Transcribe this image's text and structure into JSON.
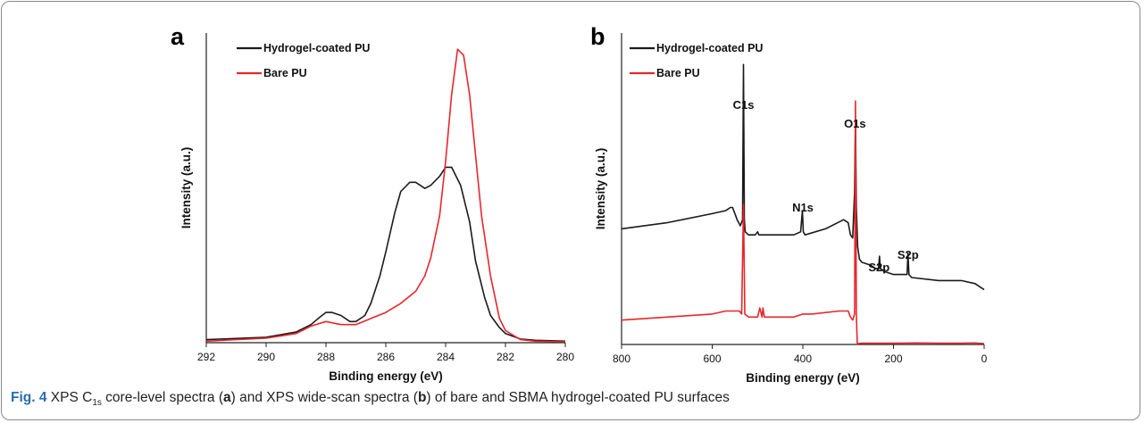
{
  "caption": {
    "lead": "Fig. 4",
    "part1": " XPS C",
    "sub": "1s",
    "part2": " core-level spectra (",
    "ref_a": "a",
    "part3": ") and XPS wide-scan spectra (",
    "ref_b": "b",
    "part4": ") of bare and SBMA hydrogel-coated PU surfaces"
  },
  "chart_data": [
    {
      "panel": "a",
      "type": "line",
      "xlabel": "Binding energy (eV)",
      "ylabel": "Intensity (a.u.)",
      "xlim": [
        292,
        280
      ],
      "x_reversed": true,
      "xticks": [
        292,
        290,
        288,
        286,
        284,
        282,
        280
      ],
      "ylim": [
        0,
        1
      ],
      "yticks_shown": false,
      "legend_position": "top-left",
      "series": [
        {
          "name": "Hydrogel-coated PU",
          "color": "#1a1a1a",
          "x": [
            292,
            290,
            289,
            288.5,
            288.2,
            288,
            287.8,
            287.5,
            287.2,
            287,
            286.7,
            286.5,
            286.2,
            286,
            285.7,
            285.5,
            285.2,
            285,
            284.7,
            284.5,
            284.2,
            284,
            283.8,
            283.5,
            283.2,
            283,
            282.7,
            282.5,
            282.2,
            282,
            281.5,
            281,
            280
          ],
          "values": [
            0.01,
            0.018,
            0.035,
            0.06,
            0.085,
            0.1,
            0.1,
            0.09,
            0.07,
            0.07,
            0.09,
            0.13,
            0.22,
            0.3,
            0.43,
            0.5,
            0.53,
            0.53,
            0.51,
            0.52,
            0.55,
            0.58,
            0.58,
            0.52,
            0.4,
            0.27,
            0.15,
            0.09,
            0.05,
            0.03,
            0.012,
            0.008,
            0.005
          ]
        },
        {
          "name": "Bare PU",
          "color": "#e8262b",
          "x": [
            292,
            290,
            289,
            288.5,
            288,
            287.5,
            287,
            286.5,
            286,
            285.5,
            285,
            284.7,
            284.5,
            284.2,
            284,
            283.8,
            283.6,
            283.4,
            283.2,
            283,
            282.8,
            282.5,
            282.2,
            282,
            281.5,
            281,
            280
          ],
          "values": [
            0.005,
            0.015,
            0.03,
            0.055,
            0.07,
            0.06,
            0.06,
            0.08,
            0.1,
            0.13,
            0.17,
            0.22,
            0.28,
            0.42,
            0.6,
            0.82,
            0.97,
            0.95,
            0.82,
            0.62,
            0.42,
            0.22,
            0.08,
            0.04,
            0.01,
            0.005,
            0.003
          ]
        }
      ]
    },
    {
      "panel": "b",
      "type": "line",
      "xlabel": "Binding energy (eV)",
      "ylabel": "Intensity (a.u.)",
      "xlim": [
        800,
        0
      ],
      "x_reversed": true,
      "xticks": [
        800,
        600,
        400,
        200,
        0
      ],
      "ylim": [
        0,
        1
      ],
      "yticks_shown": false,
      "legend_position": "top-left",
      "annotations": [
        {
          "text": "C1s",
          "x": 531
        },
        {
          "text": "N1s",
          "x": 400
        },
        {
          "text": "O1s",
          "x": 285
        },
        {
          "text": "S2p",
          "x": 232
        },
        {
          "text": "S2p",
          "x": 168
        }
      ],
      "series": [
        {
          "name": "Hydrogel-coated PU",
          "color": "#1a1a1a",
          "x": [
            800,
            700,
            600,
            570,
            560,
            555,
            550,
            545,
            538,
            533,
            531,
            529,
            527,
            520,
            505,
            500,
            497,
            480,
            450,
            420,
            405,
            401,
            399,
            395,
            350,
            310,
            300,
            295,
            290,
            286,
            284,
            282,
            279,
            275,
            270,
            250,
            240,
            233,
            231,
            229,
            220,
            200,
            170,
            168,
            166,
            160,
            100,
            50,
            20,
            0
          ],
          "values": [
            0.38,
            0.4,
            0.43,
            0.44,
            0.45,
            0.45,
            0.43,
            0.41,
            0.39,
            0.41,
            0.92,
            0.41,
            0.37,
            0.36,
            0.36,
            0.37,
            0.36,
            0.36,
            0.36,
            0.36,
            0.37,
            0.44,
            0.37,
            0.36,
            0.38,
            0.41,
            0.4,
            0.36,
            0.35,
            0.5,
            0.74,
            0.45,
            0.32,
            0.28,
            0.27,
            0.26,
            0.25,
            0.25,
            0.29,
            0.25,
            0.24,
            0.23,
            0.23,
            0.3,
            0.23,
            0.22,
            0.21,
            0.21,
            0.2,
            0.18
          ]
        },
        {
          "name": "Bare PU",
          "color": "#e8262b",
          "x": [
            800,
            700,
            600,
            570,
            545,
            540,
            535,
            531,
            528,
            520,
            500,
            495,
            490,
            488,
            485,
            480,
            450,
            420,
            400,
            380,
            320,
            300,
            295,
            290,
            286,
            284,
            282,
            280,
            278,
            270,
            250,
            200,
            150,
            100,
            50,
            20,
            0
          ],
          "values": [
            0.08,
            0.09,
            0.1,
            0.11,
            0.11,
            0.11,
            0.1,
            0.46,
            0.1,
            0.09,
            0.09,
            0.12,
            0.09,
            0.12,
            0.09,
            0.09,
            0.09,
            0.09,
            0.1,
            0.1,
            0.11,
            0.11,
            0.09,
            0.08,
            0.1,
            0.8,
            0.1,
            0.005,
            0.003,
            0.004,
            0.004,
            0.004,
            0.005,
            0.004,
            0.004,
            0.005,
            0.003
          ]
        }
      ]
    }
  ]
}
